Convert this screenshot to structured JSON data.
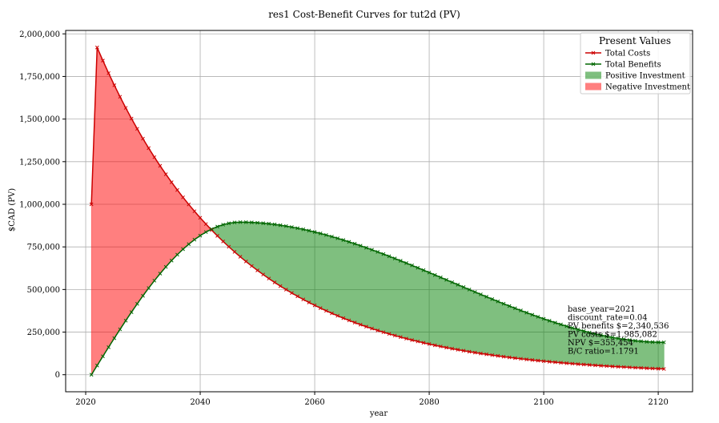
{
  "chart_data": {
    "type": "line",
    "title": "res1 Cost-Benefit Curves for tut2d (PV)",
    "xlabel": "year",
    "ylabel": "$CAD (PV)",
    "xlim": [
      2016.5,
      2126
    ],
    "ylim": [
      -100000,
      2020000
    ],
    "x_ticks": [
      2020,
      2040,
      2060,
      2080,
      2100,
      2120
    ],
    "y_ticks": [
      0,
      250000,
      500000,
      750000,
      1000000,
      1250000,
      1500000,
      1750000,
      2000000
    ],
    "y_tick_labels": [
      "0",
      "250,000",
      "500,000",
      "750,000",
      "1,000,000",
      "1,250,000",
      "1,500,000",
      "1,750,000",
      "2,000,000"
    ],
    "grid": true,
    "legend_title": "Present Values",
    "legend_position": "top-right",
    "series": [
      {
        "name": "Total Costs",
        "color": "#cc0000",
        "marker": "x",
        "model": {
          "year0": 2021,
          "start_value": 1000000,
          "peak_year": 2022,
          "peak_value": 1920000,
          "annual_decay_rate": 0.04
        }
      },
      {
        "name": "Total Benefits",
        "color": "#006600",
        "marker": "x",
        "model": {
          "year0": 2021,
          "ramp_peak_year": 2047,
          "ramp_peak_value": 895000,
          "end_year": 2121,
          "end_value": 190000
        }
      }
    ],
    "fills": [
      {
        "name": "Positive Investment",
        "color": "#008000",
        "opacity": 0.5
      },
      {
        "name": "Negative Investment",
        "color": "#ff0000",
        "opacity": 0.5
      }
    ],
    "annotations": [
      "base_year=2021",
      "discount_rate=0.04",
      "PV benefits $=2,340,536",
      "PV costs $=1,985,082",
      "NPV $=355,454",
      "B/C ratio=1.1791"
    ]
  }
}
